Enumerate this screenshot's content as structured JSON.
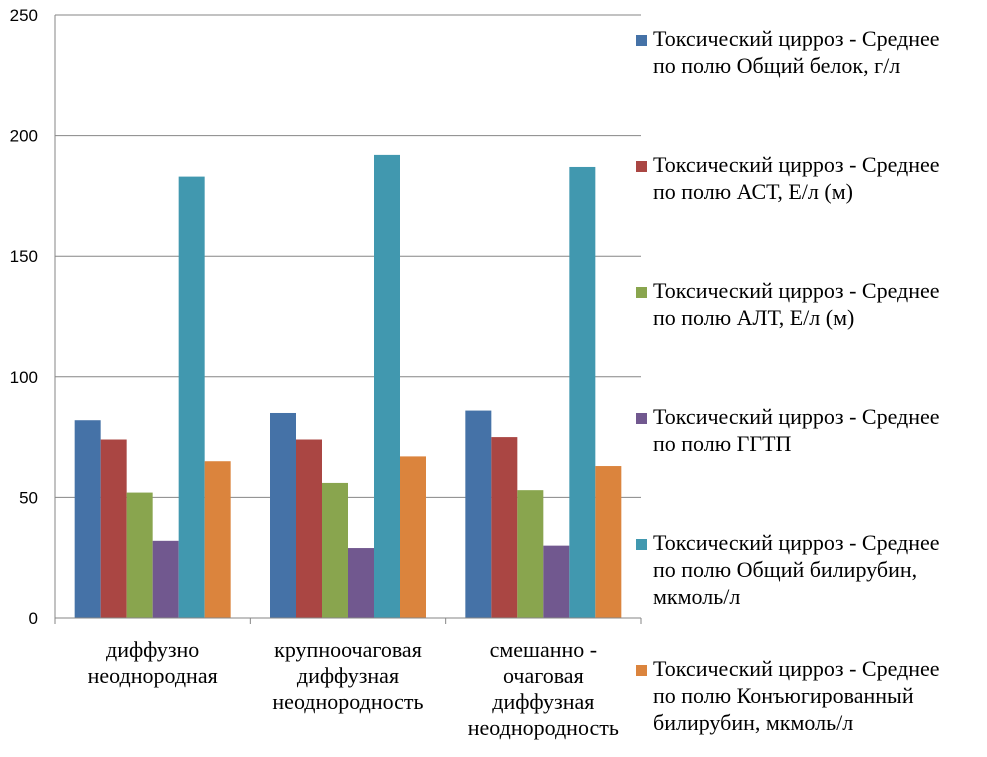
{
  "chart_data": {
    "type": "bar",
    "categories": [
      [
        "диффузно",
        "неоднородная"
      ],
      [
        "крупноочаговая",
        "диффузная",
        "неоднородность"
      ],
      [
        "смешанно -",
        "очаговая",
        "диффузная",
        "неоднородность"
      ]
    ],
    "series": [
      {
        "name": [
          "Токсический цирроз - Среднее",
          "по полю Общий белок, г/л"
        ],
        "color": "#4572A7",
        "values": [
          82,
          85,
          86
        ]
      },
      {
        "name": [
          "Токсический цирроз - Среднее",
          "по полю АСТ, Е/л (м)"
        ],
        "color": "#AA4643",
        "values": [
          74,
          74,
          75
        ]
      },
      {
        "name": [
          "Токсический цирроз - Среднее",
          "по полю АЛТ, Е/л (м)"
        ],
        "color": "#89A54E",
        "values": [
          52,
          56,
          53
        ]
      },
      {
        "name": [
          "Токсический цирроз - Среднее",
          "по полю ГГТП"
        ],
        "color": "#71588F",
        "values": [
          32,
          29,
          30
        ]
      },
      {
        "name": [
          "Токсический цирроз - Среднее",
          "по полю Общий билирубин,",
          "мкмоль/л"
        ],
        "color": "#4198AF",
        "values": [
          183,
          192,
          187
        ]
      },
      {
        "name": [
          "Токсический цирроз - Среднее",
          "по полю Конъюгированный",
          "билирубин, мкмоль/л"
        ],
        "color": "#DB843D",
        "values": [
          65,
          67,
          63
        ]
      }
    ],
    "ylim": [
      0,
      250
    ],
    "yticks": [
      "0",
      "50",
      "100",
      "150",
      "200",
      "250"
    ],
    "grid": true,
    "legend": "right"
  }
}
